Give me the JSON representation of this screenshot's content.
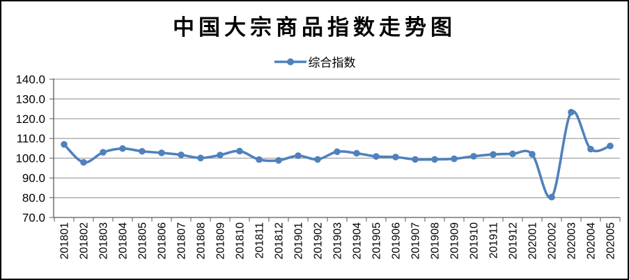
{
  "window": {
    "background": "#ffffff",
    "border_color": "#000000"
  },
  "chart_data": {
    "type": "line",
    "title": "中国大宗商品指数走势图",
    "legend_label": "综合指数",
    "legend_position": "top",
    "smooth": true,
    "marker": "circle",
    "grid": "horizontal",
    "xlabel": "",
    "ylabel": "",
    "ylim": [
      70,
      140
    ],
    "yticks": {
      "labels": [
        "140.0",
        "130.0",
        "120.0",
        "110.0",
        "100.0",
        "90.0",
        "80.0",
        "70.0"
      ],
      "values": [
        140,
        130,
        120,
        110,
        100,
        90,
        80,
        70
      ]
    },
    "categories": [
      "201801",
      "201802",
      "201803",
      "201804",
      "201805",
      "201806",
      "201807",
      "201808",
      "201809",
      "201810",
      "201811",
      "201812",
      "201901",
      "201902",
      "201903",
      "201904",
      "201905",
      "201906",
      "201907",
      "201908",
      "201909",
      "201910",
      "201911",
      "201912",
      "202001",
      "202002",
      "202003",
      "202004",
      "202005"
    ],
    "series": [
      {
        "name": "综合指数",
        "color": "#4F81BD",
        "values": [
          107.0,
          97.9,
          103.0,
          104.9,
          103.5,
          102.7,
          101.7,
          100.1,
          101.6,
          103.6,
          99.3,
          98.9,
          101.3,
          99.4,
          103.3,
          102.5,
          100.9,
          100.6,
          99.4,
          99.4,
          99.7,
          101.0,
          101.9,
          102.2,
          102.0,
          80.3,
          123.3,
          104.6,
          106.2
        ]
      }
    ],
    "colors": {
      "line": "#4F81BD",
      "grid": "#8C8C8C",
      "axis": "#595959",
      "tick_text": "#000000"
    }
  }
}
